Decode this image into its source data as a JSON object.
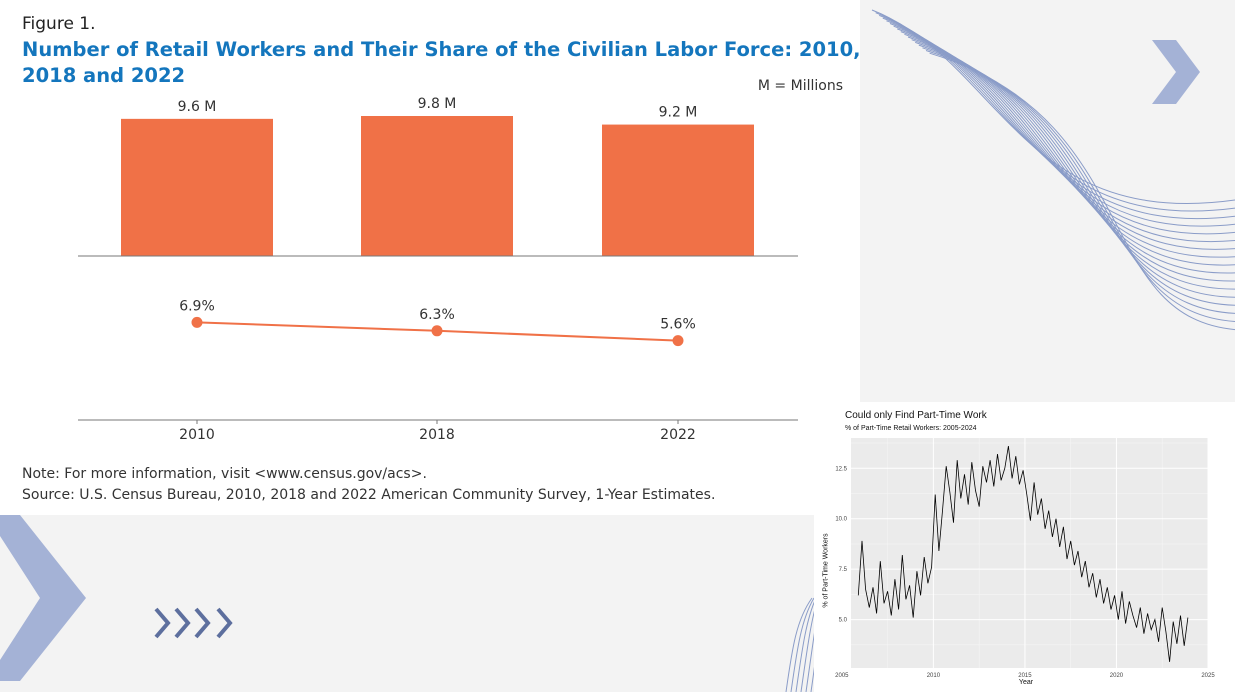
{
  "figure1": {
    "label": "Figure 1.",
    "title": "Number of Retail Workers and Their Share of the Civilian Labor Force: 2010, 2018 and 2022",
    "units_note": "M = Millions",
    "note": "Note: For more information, visit <www.census.gov/acs>.",
    "source": "Source: U.S. Census Bureau, 2010, 2018 and 2022 American Community Survey, 1-Year Estimates."
  },
  "timeseries": {
    "title": "Could only Find Part-Time Work",
    "subtitle": "% of Part-Time Retail Workers: 2005-2024",
    "ylabel": "% of Part-Time Workers",
    "xlabel": "Year"
  },
  "colors": {
    "bar": "#f07147",
    "line": "#f07147",
    "title_blue": "#1476bd",
    "decor_blue": "#8a9cc8",
    "ts_panel": "#ebebeb"
  },
  "chart_data": [
    {
      "type": "bar",
      "categories": [
        "2010",
        "2018",
        "2022"
      ],
      "values": [
        9.6,
        9.8,
        9.2
      ],
      "value_labels": [
        "9.6 M",
        "9.8 M",
        "9.2 M"
      ],
      "ylim": [
        0,
        9.8
      ]
    },
    {
      "type": "line",
      "categories": [
        "2010",
        "2018",
        "2022"
      ],
      "values": [
        6.9,
        6.3,
        5.6
      ],
      "value_labels": [
        "6.9%",
        "6.3%",
        "5.6%"
      ],
      "ylim": [
        0,
        10
      ]
    },
    {
      "type": "line",
      "title": "Could only Find Part-Time Work",
      "subtitle": "% of Part-Time Retail Workers: 2005-2024",
      "xlabel": "Year",
      "ylabel": "% of Part-Time Workers",
      "xlim": [
        2005.5,
        2025
      ],
      "ylim": [
        2.6,
        14.0
      ],
      "xticks": [
        "2005",
        "2010",
        "2015",
        "2020",
        "2025"
      ],
      "yticks": [
        "5.0",
        "7.5",
        "10.0",
        "12.5"
      ],
      "grid": true,
      "series": [
        {
          "x": [
            2005.9,
            2006.1,
            2006.3,
            2006.5,
            2006.7,
            2006.9,
            2007.1,
            2007.3,
            2007.5,
            2007.7,
            2007.9,
            2008.1,
            2008.3,
            2008.5,
            2008.7,
            2008.9,
            2009.1,
            2009.3,
            2009.5,
            2009.7,
            2009.9,
            2010.1,
            2010.3,
            2010.5,
            2010.7,
            2010.9,
            2011.1,
            2011.3,
            2011.5,
            2011.7,
            2011.9,
            2012.1,
            2012.3,
            2012.5,
            2012.7,
            2012.9,
            2013.1,
            2013.3,
            2013.5,
            2013.7,
            2013.9,
            2014.1,
            2014.3,
            2014.5,
            2014.7,
            2014.9,
            2015.1,
            2015.3,
            2015.5,
            2015.7,
            2015.9,
            2016.1,
            2016.3,
            2016.5,
            2016.7,
            2016.9,
            2017.1,
            2017.3,
            2017.5,
            2017.7,
            2017.9,
            2018.1,
            2018.3,
            2018.5,
            2018.7,
            2018.9,
            2019.1,
            2019.3,
            2019.5,
            2019.7,
            2019.9,
            2020.1,
            2020.3,
            2020.5,
            2020.7,
            2020.9,
            2021.1,
            2021.3,
            2021.5,
            2021.7,
            2021.9,
            2022.1,
            2022.3,
            2022.5,
            2022.7,
            2022.9,
            2023.1,
            2023.3,
            2023.5,
            2023.7,
            2023.9
          ],
          "y": [
            6.2,
            8.9,
            6.5,
            5.6,
            6.6,
            5.3,
            7.9,
            5.8,
            6.4,
            5.2,
            7.0,
            5.5,
            8.2,
            6.0,
            6.7,
            5.1,
            7.4,
            6.2,
            8.1,
            6.8,
            7.6,
            11.2,
            8.4,
            10.4,
            12.6,
            11.3,
            9.8,
            12.9,
            11.0,
            12.2,
            10.7,
            12.8,
            11.4,
            10.6,
            12.6,
            11.8,
            12.9,
            11.6,
            13.2,
            11.9,
            12.5,
            13.6,
            12.0,
            13.1,
            11.7,
            12.4,
            11.2,
            9.9,
            11.8,
            10.2,
            11.0,
            9.5,
            10.4,
            9.1,
            10.0,
            8.6,
            9.6,
            8.0,
            8.9,
            7.7,
            8.4,
            7.1,
            7.9,
            6.6,
            7.3,
            6.1,
            7.0,
            5.8,
            6.6,
            5.5,
            6.2,
            5.0,
            6.4,
            4.8,
            5.9,
            5.2,
            4.6,
            5.6,
            4.3,
            5.3,
            4.5,
            5.0,
            3.9,
            5.6,
            4.4,
            2.9,
            4.9,
            3.8,
            5.2,
            3.7,
            5.1
          ]
        }
      ]
    }
  ]
}
